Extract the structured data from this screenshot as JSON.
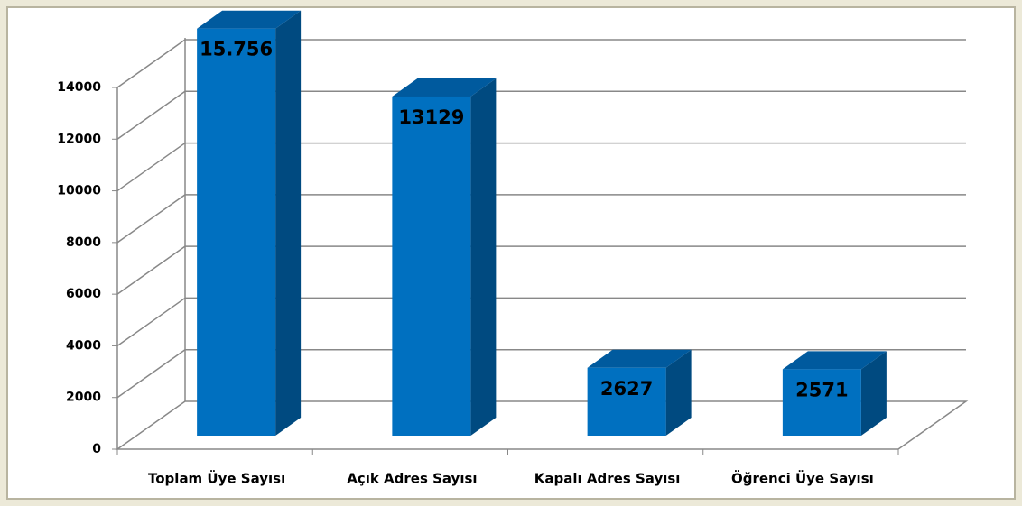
{
  "chart_data": {
    "type": "bar",
    "categories": [
      "Toplam Üye Sayısı",
      "Açık Adres Sayısı",
      "Kapalı Adres Sayısı",
      "Öğrenci Üye Sayısı"
    ],
    "values": [
      15756,
      13129,
      2627,
      2571
    ],
    "value_labels": [
      "15.756",
      "13129",
      "2627",
      "2571"
    ],
    "color": "#0070c0",
    "ylim": [
      0,
      14000
    ],
    "yticks": [
      0,
      2000,
      4000,
      6000,
      8000,
      10000,
      12000,
      14000
    ],
    "grid": true
  }
}
